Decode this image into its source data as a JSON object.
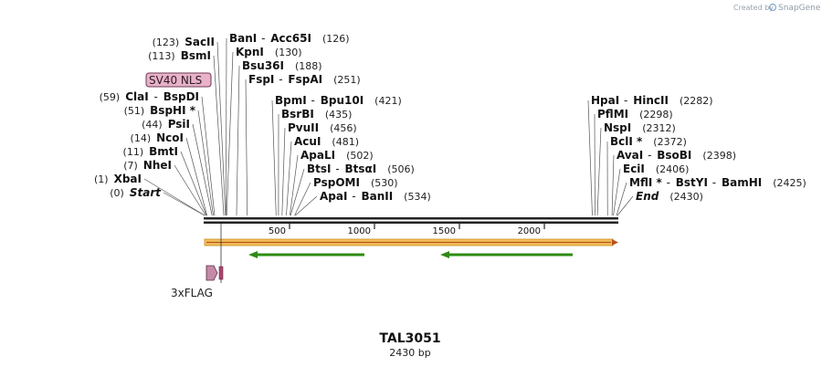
{
  "header": {
    "credit_text": "Created by",
    "brand": "SnapGene"
  },
  "plasmid": {
    "name": "TAL3051",
    "length_label": "2430 bp",
    "length": 2430
  },
  "ruler": {
    "ticks": [
      500,
      1000,
      1500,
      2000
    ]
  },
  "features": {
    "nls_label": "SV40 NLS",
    "flag_label": "3xFLAG"
  },
  "colors": {
    "backbone": "#222222",
    "orf_fill": "#f3c05a",
    "orf_border": "#c98a1c",
    "green_arrow": "#2e8b12",
    "nls_fill": "#e8b2c9",
    "flag_fill": "#c48aa8"
  },
  "sites_left": [
    {
      "pos": "(0)",
      "name": "Start",
      "italic": true
    },
    {
      "pos": "(1)",
      "name": "XbaI"
    },
    {
      "pos": "(7)",
      "name": "NheI"
    },
    {
      "pos": "(11)",
      "name": "BmtI"
    },
    {
      "pos": "(14)",
      "name": "NcoI"
    },
    {
      "pos": "(44)",
      "name": "PsiI"
    },
    {
      "pos": "(51)",
      "name": "BspHI *"
    },
    {
      "pos": "(59)",
      "name": "ClaI",
      "name2": "BspDI"
    },
    {
      "pos": "(113)",
      "name": "BsmI"
    },
    {
      "pos": "(123)",
      "name": "SacII"
    }
  ],
  "sites_right_top": [
    {
      "name": "BanI",
      "name2": "Acc65I",
      "pos": "(126)"
    },
    {
      "name": "KpnI",
      "pos": "(130)"
    },
    {
      "name": "Bsu36I",
      "pos": "(188)"
    },
    {
      "name": "FspI",
      "name2": "FspAI",
      "pos": "(251)"
    }
  ],
  "sites_middle": [
    {
      "name": "BpmI",
      "name2": "Bpu10I",
      "pos": "(421)"
    },
    {
      "name": "BsrBI",
      "pos": "(435)"
    },
    {
      "name": "PvuII",
      "pos": "(456)"
    },
    {
      "name": "AcuI",
      "pos": "(481)"
    },
    {
      "name": "ApaLI",
      "pos": "(502)"
    },
    {
      "name": "BtsI",
      "name2": "BtsαI",
      "pos": "(506)"
    },
    {
      "name": "PspOMI",
      "pos": "(530)"
    },
    {
      "name": "ApaI",
      "name2": "BanII",
      "pos": "(534)"
    }
  ],
  "sites_right": [
    {
      "name": "HpaI",
      "name2": "HincII",
      "pos": "(2282)"
    },
    {
      "name": "PflMI",
      "pos": "(2298)"
    },
    {
      "name": "NspI",
      "pos": "(2312)"
    },
    {
      "name": "BclI *",
      "pos": "(2372)"
    },
    {
      "name": "AvaI",
      "name2": "BsoBI",
      "pos": "(2398)"
    },
    {
      "name": "EciI",
      "pos": "(2406)"
    },
    {
      "name": "MflI *",
      "name2": "BstYI",
      "name3": "BamHI",
      "pos": "(2425)"
    },
    {
      "name": "End",
      "italic": true,
      "pos": "(2430)"
    }
  ]
}
